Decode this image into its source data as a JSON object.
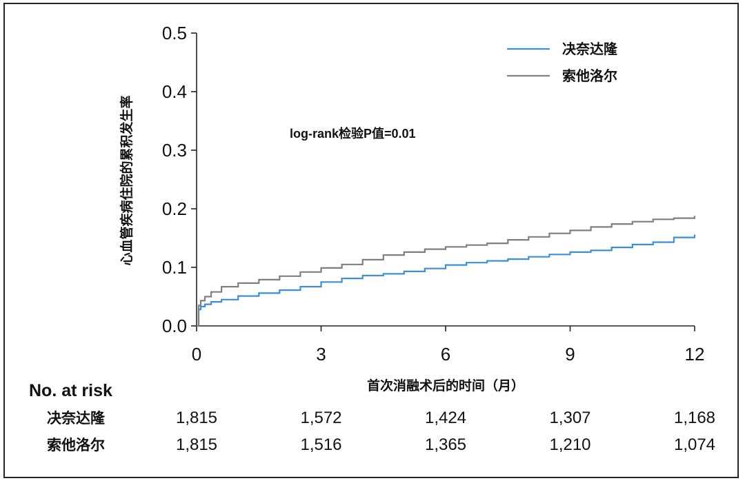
{
  "chart_data": {
    "type": "line",
    "title": "",
    "xlabel": "首次消融术后的时间（月）",
    "ylabel": "心血管疾病住院的累积发生率",
    "xlim": [
      0,
      12
    ],
    "ylim": [
      0,
      0.5
    ],
    "x_ticks": [
      "0",
      "3",
      "6",
      "9",
      "12"
    ],
    "y_ticks": [
      "0.0",
      "0.1",
      "0.2",
      "0.3",
      "0.4",
      "0.5"
    ],
    "grid": false,
    "legend_position": "top-right",
    "annotation": "log-rank检验P值=0.01",
    "series": [
      {
        "name": "决奈达隆",
        "color": "#3a8fd9",
        "x": [
          0,
          0.05,
          0.1,
          0.2,
          0.35,
          0.6,
          1,
          1.5,
          2,
          2.5,
          3,
          3.5,
          4,
          4.5,
          5,
          5.5,
          6,
          6.5,
          7,
          7.5,
          8,
          8.5,
          9,
          9.5,
          10,
          10.5,
          11,
          11.5,
          12
        ],
        "y": [
          0,
          0.028,
          0.033,
          0.037,
          0.041,
          0.045,
          0.051,
          0.056,
          0.061,
          0.067,
          0.075,
          0.081,
          0.086,
          0.089,
          0.093,
          0.098,
          0.104,
          0.108,
          0.111,
          0.114,
          0.118,
          0.122,
          0.126,
          0.129,
          0.134,
          0.139,
          0.143,
          0.151,
          0.156
        ]
      },
      {
        "name": "索他洛尔",
        "color": "#7f7f7f",
        "x": [
          0,
          0.05,
          0.1,
          0.2,
          0.35,
          0.6,
          1,
          1.5,
          2,
          2.5,
          3,
          3.5,
          4,
          4.5,
          5,
          5.5,
          6,
          6.5,
          7,
          7.5,
          8,
          8.5,
          9,
          9.5,
          10,
          10.5,
          11,
          11.5,
          12
        ],
        "y": [
          0,
          0.035,
          0.043,
          0.05,
          0.058,
          0.067,
          0.073,
          0.079,
          0.085,
          0.092,
          0.099,
          0.105,
          0.113,
          0.121,
          0.126,
          0.131,
          0.135,
          0.138,
          0.141,
          0.147,
          0.152,
          0.158,
          0.163,
          0.169,
          0.174,
          0.178,
          0.182,
          0.184,
          0.188
        ]
      }
    ]
  },
  "risk_table": {
    "title": "No. at risk",
    "rows": [
      {
        "label": "决奈达隆",
        "values": [
          "1,815",
          "1,572",
          "1,424",
          "1,307",
          "1,168"
        ]
      },
      {
        "label": "索他洛尔",
        "values": [
          "1,815",
          "1,516",
          "1,365",
          "1,210",
          "1,074"
        ]
      }
    ]
  }
}
